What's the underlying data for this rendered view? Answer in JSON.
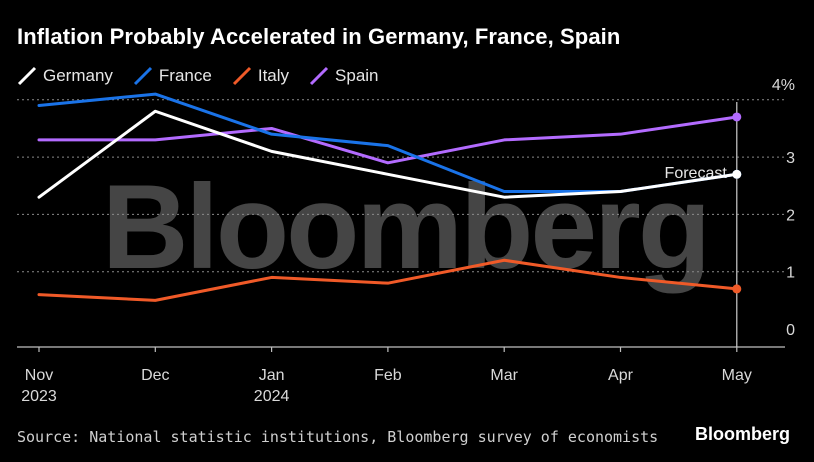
{
  "title": "Inflation Probably Accelerated in Germany, France, Spain",
  "source": "Source: National statistic institutions, Bloomberg survey of economists",
  "brand": "Bloomberg",
  "watermark": "Bloomberg",
  "chart_data": {
    "type": "line",
    "title": "Inflation Probably Accelerated in Germany, France, Spain",
    "xlabel": "",
    "ylabel": "%",
    "ylim": [
      -0.3,
      4
    ],
    "yticks": [
      0,
      1,
      2,
      3,
      4
    ],
    "ytick_labels": [
      "0",
      "1",
      "2",
      "3",
      "4%"
    ],
    "categories": [
      {
        "line1": "Nov",
        "line2": "2023"
      },
      {
        "line1": "Dec",
        "line2": ""
      },
      {
        "line1": "Jan",
        "line2": "2024"
      },
      {
        "line1": "Feb",
        "line2": ""
      },
      {
        "line1": "Mar",
        "line2": ""
      },
      {
        "line1": "Apr",
        "line2": ""
      },
      {
        "line1": "May",
        "line2": ""
      }
    ],
    "annotation": "Forecast",
    "series": [
      {
        "name": "Germany",
        "color": "#ffffff",
        "values": [
          2.3,
          3.8,
          3.1,
          2.7,
          2.3,
          2.4,
          2.7
        ]
      },
      {
        "name": "France",
        "color": "#1a73e8",
        "values": [
          3.9,
          4.1,
          3.4,
          3.2,
          2.4,
          2.4,
          2.7
        ]
      },
      {
        "name": "Italy",
        "color": "#f05a28",
        "values": [
          0.6,
          0.5,
          0.9,
          0.8,
          1.2,
          0.9,
          0.7
        ]
      },
      {
        "name": "Spain",
        "color": "#b36bff",
        "values": [
          3.3,
          3.3,
          3.5,
          2.9,
          3.3,
          3.4,
          3.7
        ]
      }
    ]
  }
}
